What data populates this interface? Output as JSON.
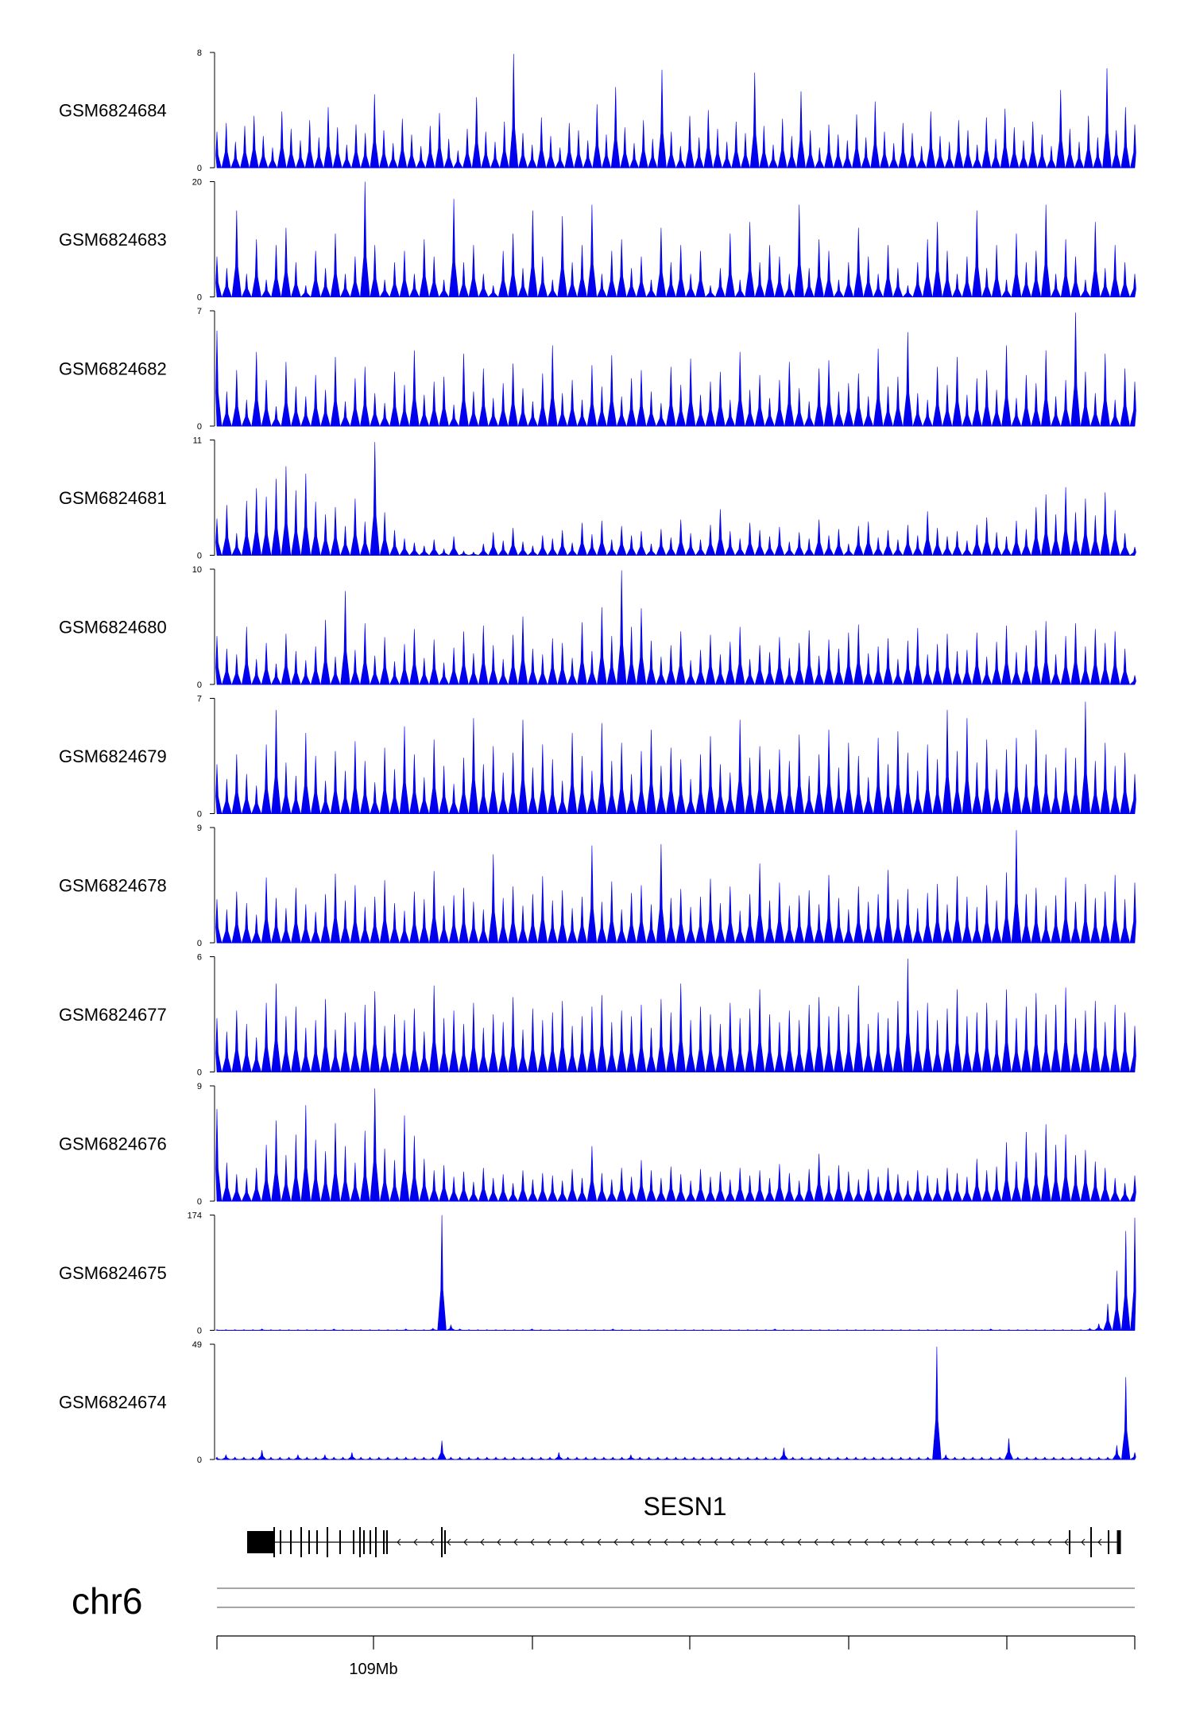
{
  "chart_data": {
    "type": "area",
    "series_color": "#0000ee",
    "tracks": [
      {
        "name": "GSM6824684",
        "ylim": [
          0,
          8
        ],
        "y_ticks": [
          "0",
          "8"
        ],
        "values": [
          2.5,
          3.1,
          1.8,
          2.9,
          3.6,
          2.2,
          1.4,
          3.9,
          2.7,
          1.9,
          3.3,
          2.1,
          4.2,
          2.8,
          1.6,
          3.0,
          2.4,
          5.1,
          2.6,
          1.7,
          3.4,
          2.3,
          1.5,
          2.9,
          3.8,
          2.0,
          1.2,
          2.7,
          4.9,
          2.5,
          1.8,
          3.2,
          7.9,
          2.4,
          1.6,
          3.5,
          2.2,
          1.4,
          3.1,
          2.6,
          1.9,
          4.4,
          2.3,
          5.6,
          2.8,
          1.7,
          3.3,
          2.0,
          6.8,
          2.5,
          1.5,
          3.6,
          2.1,
          4.0,
          2.7,
          1.8,
          3.2,
          2.4,
          6.6,
          2.9,
          1.6,
          3.4,
          2.2,
          5.3,
          2.6,
          1.4,
          3.0,
          2.3,
          1.9,
          3.7,
          2.1,
          4.6,
          2.5,
          1.7,
          3.1,
          2.4,
          1.5,
          3.9,
          2.2,
          1.8,
          3.3,
          2.6,
          1.6,
          3.5,
          2.0,
          4.1,
          2.8,
          1.9,
          3.2,
          2.3,
          1.5,
          5.4,
          2.7,
          1.8,
          3.6,
          2.1,
          6.9,
          2.6,
          4.2,
          3.0
        ]
      },
      {
        "name": "GSM6824683",
        "ylim": [
          0,
          20
        ],
        "y_ticks": [
          "0",
          "20"
        ],
        "values": [
          7,
          5,
          15,
          4,
          10,
          3,
          9,
          12,
          6,
          2,
          8,
          5,
          11,
          4,
          7,
          20,
          9,
          3,
          6,
          8,
          4,
          10,
          7,
          3,
          17,
          6,
          9,
          4,
          2,
          8,
          11,
          5,
          15,
          7,
          3,
          14,
          6,
          9,
          16,
          4,
          8,
          10,
          5,
          7,
          3,
          12,
          6,
          9,
          4,
          8,
          2,
          5,
          11,
          3,
          13,
          6,
          9,
          7,
          4,
          16,
          5,
          10,
          8,
          3,
          6,
          12,
          7,
          4,
          9,
          5,
          2,
          6,
          10,
          13,
          8,
          4,
          7,
          15,
          5,
          9,
          3,
          11,
          6,
          8,
          16,
          4,
          10,
          7,
          3,
          13,
          5,
          9,
          6,
          4
        ]
      },
      {
        "name": "GSM6824682",
        "ylim": [
          0,
          7
        ],
        "y_ticks": [
          "0",
          "7"
        ],
        "values": [
          5.8,
          2.1,
          3.4,
          1.6,
          4.5,
          2.8,
          1.2,
          3.9,
          2.4,
          1.8,
          3.1,
          2.2,
          4.2,
          1.5,
          2.9,
          3.6,
          2.0,
          1.4,
          3.3,
          2.5,
          4.6,
          1.9,
          2.7,
          3.0,
          1.3,
          4.4,
          2.1,
          3.5,
          1.7,
          2.6,
          3.8,
          2.3,
          1.5,
          3.2,
          4.9,
          2.0,
          2.8,
          1.6,
          3.7,
          2.4,
          4.3,
          1.8,
          2.9,
          3.4,
          2.1,
          1.4,
          3.6,
          2.5,
          4.1,
          1.9,
          2.7,
          3.3,
          1.6,
          4.5,
          2.2,
          3.1,
          1.7,
          2.8,
          3.9,
          2.3,
          1.5,
          3.5,
          4.0,
          2.1,
          2.6,
          3.2,
          1.8,
          4.7,
          2.4,
          3.0,
          5.7,
          2.0,
          1.6,
          3.6,
          2.5,
          4.2,
          1.9,
          2.9,
          3.4,
          2.2,
          4.9,
          1.7,
          3.1,
          2.6,
          4.6,
          1.8,
          2.8,
          6.9,
          3.3,
          2.0,
          4.4,
          1.6,
          3.5,
          2.7
        ]
      },
      {
        "name": "GSM6824681",
        "ylim": [
          0,
          11
        ],
        "y_ticks": [
          "0",
          "11"
        ],
        "values": [
          3.5,
          4.8,
          2.1,
          5.2,
          6.4,
          5.6,
          7.3,
          8.5,
          6.2,
          7.8,
          5.1,
          3.9,
          4.6,
          2.8,
          5.4,
          3.2,
          10.8,
          4.1,
          2.4,
          1.6,
          1.2,
          0.9,
          1.5,
          0.6,
          1.8,
          0.4,
          0.3,
          1.1,
          2.2,
          1.4,
          2.6,
          1.3,
          0.9,
          1.9,
          1.6,
          2.4,
          1.2,
          3.1,
          2.0,
          3.3,
          1.5,
          2.8,
          1.9,
          2.3,
          1.1,
          2.5,
          1.7,
          3.4,
          2.1,
          1.5,
          2.9,
          4.4,
          2.3,
          1.6,
          3.1,
          2.4,
          1.8,
          2.7,
          1.3,
          2.2,
          1.6,
          3.4,
          1.9,
          2.5,
          1.1,
          2.8,
          3.2,
          1.7,
          2.4,
          1.5,
          2.9,
          1.9,
          4.2,
          2.6,
          1.8,
          2.3,
          1.4,
          2.9,
          3.6,
          2.2,
          1.8,
          3.3,
          2.5,
          4.6,
          5.8,
          3.9,
          6.5,
          4.1,
          5.4,
          3.8,
          6.0,
          4.3,
          2.1,
          0.8
        ]
      },
      {
        "name": "GSM6824680",
        "ylim": [
          0,
          10
        ],
        "y_ticks": [
          "0",
          "10"
        ],
        "values": [
          4.2,
          3.1,
          2.6,
          5.0,
          2.2,
          3.6,
          1.8,
          4.4,
          2.9,
          2.1,
          3.3,
          5.6,
          2.4,
          8.1,
          3.0,
          5.3,
          2.5,
          4.1,
          2.0,
          3.5,
          4.8,
          2.3,
          3.9,
          1.9,
          3.2,
          4.6,
          2.7,
          5.1,
          3.4,
          2.2,
          4.3,
          5.9,
          3.1,
          2.6,
          4.0,
          3.6,
          2.3,
          5.4,
          2.9,
          6.7,
          4.2,
          9.9,
          5.0,
          6.6,
          3.8,
          2.4,
          3.4,
          4.6,
          2.1,
          3.0,
          4.3,
          2.6,
          3.7,
          5.0,
          2.2,
          3.4,
          2.8,
          4.1,
          2.3,
          3.6,
          4.7,
          2.5,
          3.9,
          3.1,
          4.5,
          5.2,
          2.7,
          3.3,
          4.0,
          2.2,
          3.8,
          4.9,
          2.6,
          3.5,
          4.4,
          2.9,
          3.0,
          4.5,
          2.4,
          3.7,
          5.1,
          2.8,
          3.4,
          4.7,
          5.5,
          2.6,
          4.2,
          5.3,
          3.3,
          4.8,
          3.6,
          4.6,
          3.1,
          0.8
        ]
      },
      {
        "name": "GSM6824679",
        "ylim": [
          0,
          7
        ],
        "y_ticks": [
          "0",
          "7"
        ],
        "values": [
          3.0,
          2.1,
          3.6,
          2.4,
          1.7,
          4.2,
          6.3,
          3.1,
          2.3,
          4.9,
          3.5,
          2.0,
          3.8,
          2.6,
          4.4,
          3.2,
          1.9,
          4.0,
          2.7,
          5.3,
          3.6,
          2.2,
          4.5,
          2.9,
          1.8,
          3.4,
          5.8,
          3.0,
          4.1,
          2.5,
          3.7,
          5.7,
          2.8,
          4.2,
          3.3,
          2.0,
          4.9,
          3.5,
          2.6,
          5.5,
          3.2,
          4.3,
          2.4,
          3.8,
          5.1,
          2.9,
          4.0,
          3.3,
          2.1,
          3.6,
          4.7,
          3.0,
          2.5,
          5.7,
          3.4,
          4.1,
          2.7,
          3.9,
          3.2,
          4.8,
          2.3,
          3.6,
          5.1,
          2.8,
          4.3,
          3.5,
          2.2,
          4.6,
          3.0,
          5.0,
          3.7,
          2.6,
          4.2,
          3.3,
          6.3,
          3.8,
          5.8,
          3.1,
          4.5,
          2.7,
          3.9,
          4.6,
          3.0,
          5.1,
          3.6,
          2.8,
          4.0,
          3.4,
          6.8,
          3.2,
          4.3,
          2.9,
          3.7,
          2.4
        ]
      },
      {
        "name": "GSM6824678",
        "ylim": [
          0,
          9
        ],
        "y_ticks": [
          "0",
          "9"
        ],
        "values": [
          3.4,
          2.6,
          4.0,
          3.1,
          2.2,
          5.1,
          3.5,
          2.7,
          4.3,
          3.0,
          2.4,
          3.8,
          5.4,
          3.3,
          4.5,
          2.8,
          3.6,
          4.9,
          3.1,
          2.5,
          4.0,
          3.4,
          5.6,
          2.9,
          3.7,
          4.3,
          3.2,
          2.6,
          6.9,
          3.5,
          4.4,
          2.9,
          3.8,
          5.2,
          3.3,
          4.1,
          2.7,
          3.6,
          7.6,
          3.2,
          4.8,
          2.6,
          3.9,
          4.5,
          3.0,
          7.7,
          3.5,
          4.2,
          2.8,
          3.6,
          5.0,
          3.1,
          4.4,
          2.5,
          3.8,
          6.2,
          3.3,
          4.7,
          2.9,
          3.7,
          4.1,
          3.0,
          5.3,
          3.5,
          2.6,
          4.4,
          3.2,
          3.8,
          5.7,
          3.4,
          4.2,
          2.7,
          3.9,
          4.6,
          3.0,
          5.2,
          3.6,
          2.8,
          4.5,
          3.3,
          5.5,
          8.8,
          3.8,
          4.3,
          2.9,
          3.7,
          5.1,
          3.2,
          4.6,
          3.5,
          4.0,
          5.3,
          3.4,
          4.7
        ]
      },
      {
        "name": "GSM6824677",
        "ylim": [
          0,
          6
        ],
        "y_ticks": [
          "0",
          "6"
        ],
        "values": [
          2.8,
          2.1,
          3.2,
          2.5,
          1.8,
          3.6,
          4.6,
          2.9,
          3.4,
          2.3,
          2.7,
          3.8,
          2.2,
          3.1,
          2.6,
          3.5,
          4.2,
          2.4,
          3.0,
          2.7,
          3.3,
          2.1,
          4.5,
          2.8,
          3.2,
          2.5,
          3.6,
          2.3,
          3.0,
          2.6,
          3.9,
          2.2,
          3.3,
          2.7,
          3.1,
          3.7,
          2.4,
          2.9,
          3.4,
          4.0,
          2.6,
          3.2,
          2.9,
          3.5,
          2.3,
          3.8,
          3.1,
          4.6,
          2.7,
          3.4,
          3.0,
          2.5,
          3.6,
          2.8,
          3.3,
          4.3,
          3.0,
          2.6,
          3.2,
          2.7,
          3.5,
          3.9,
          2.9,
          3.4,
          3.0,
          4.5,
          2.5,
          3.1,
          2.8,
          3.7,
          5.9,
          3.2,
          3.6,
          2.7,
          3.3,
          4.3,
          2.9,
          3.1,
          3.6,
          2.7,
          4.3,
          2.8,
          3.4,
          4.1,
          3.0,
          3.5,
          4.4,
          2.8,
          3.2,
          3.7,
          2.6,
          3.5,
          3.1,
          2.4
        ]
      },
      {
        "name": "GSM6824676",
        "ylim": [
          0,
          9
        ],
        "y_ticks": [
          "0",
          "9"
        ],
        "values": [
          7.2,
          3.0,
          2.1,
          1.8,
          2.6,
          4.4,
          6.3,
          3.6,
          5.2,
          7.5,
          4.8,
          3.9,
          6.1,
          4.3,
          3.0,
          5.5,
          8.8,
          4.1,
          3.2,
          6.7,
          5.1,
          3.3,
          2.4,
          2.8,
          1.9,
          2.3,
          1.5,
          2.6,
          1.8,
          2.1,
          1.4,
          2.4,
          1.7,
          2.2,
          2.0,
          1.6,
          2.5,
          1.8,
          4.3,
          2.2,
          1.7,
          2.6,
          1.9,
          3.2,
          2.4,
          1.8,
          2.7,
          2.1,
          1.6,
          2.5,
          1.9,
          2.3,
          1.7,
          2.6,
          2.0,
          2.4,
          1.8,
          2.9,
          2.2,
          1.6,
          2.5,
          3.7,
          2.0,
          2.8,
          2.3,
          1.7,
          2.5,
          1.9,
          2.6,
          2.1,
          1.6,
          2.4,
          2.0,
          1.8,
          2.6,
          2.2,
          1.9,
          3.3,
          2.4,
          2.7,
          4.6,
          3.1,
          5.4,
          3.8,
          6.0,
          4.4,
          5.2,
          3.6,
          4.0,
          3.1,
          2.6,
          1.8,
          1.4,
          2.0
        ]
      },
      {
        "name": "GSM6824675",
        "ylim": [
          0,
          174
        ],
        "y_ticks": [
          "0",
          "174"
        ],
        "values": [
          1,
          1,
          1,
          1,
          1,
          2,
          1,
          1,
          1,
          1,
          1,
          1,
          1,
          2,
          1,
          1,
          1,
          1,
          1,
          1,
          1,
          2,
          1,
          1,
          3,
          174,
          8,
          2,
          1,
          1,
          1,
          1,
          1,
          1,
          1,
          2,
          1,
          1,
          1,
          1,
          1,
          1,
          1,
          1,
          2,
          1,
          1,
          1,
          1,
          1,
          1,
          1,
          1,
          1,
          1,
          1,
          1,
          1,
          1,
          1,
          1,
          1,
          2,
          1,
          1,
          1,
          1,
          1,
          1,
          1,
          1,
          1,
          1,
          1,
          1,
          1,
          1,
          1,
          1,
          1,
          1,
          1,
          1,
          1,
          1,
          1,
          2,
          1,
          1,
          1,
          1,
          1,
          1,
          1,
          1,
          1,
          1,
          3,
          10,
          40,
          90,
          150,
          170
        ]
      },
      {
        "name": "GSM6824674",
        "ylim": [
          0,
          49
        ],
        "y_ticks": [
          "0",
          "49"
        ],
        "values": [
          1,
          2,
          1,
          1,
          1,
          4,
          1,
          1,
          1,
          2,
          1,
          1,
          2,
          1,
          1,
          3,
          1,
          1,
          1,
          1,
          1,
          1,
          1,
          1,
          1,
          8,
          1,
          1,
          1,
          1,
          1,
          1,
          1,
          1,
          1,
          1,
          1,
          1,
          3,
          1,
          1,
          1,
          1,
          1,
          1,
          1,
          2,
          1,
          1,
          1,
          1,
          1,
          1,
          1,
          1,
          1,
          1,
          1,
          1,
          1,
          1,
          1,
          1,
          5,
          1,
          1,
          1,
          1,
          1,
          1,
          1,
          1,
          1,
          1,
          1,
          1,
          1,
          1,
          1,
          1,
          48,
          2,
          1,
          1,
          1,
          1,
          1,
          1,
          9,
          1,
          1,
          1,
          1,
          1,
          1,
          1,
          1,
          1,
          1,
          1,
          6,
          35,
          3
        ]
      }
    ],
    "gene": {
      "name": "SESN1"
    },
    "chromosome": "chr6",
    "x_axis": {
      "tick_labels": [
        "",
        "109Mb",
        "",
        "",
        "",
        "",
        ""
      ]
    }
  }
}
